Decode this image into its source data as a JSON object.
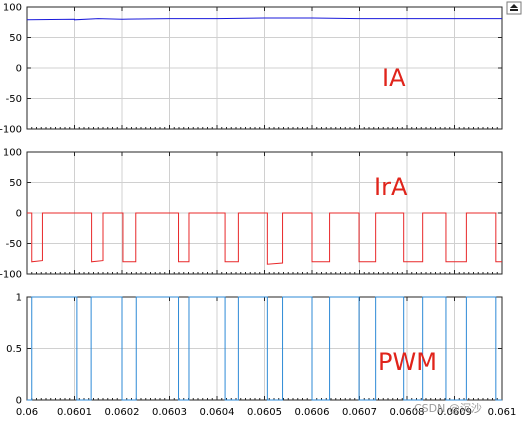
{
  "toolbar": {
    "restore_icon": "restore-axes-icon"
  },
  "watermark": "CSDN @沉沙",
  "chart_data": [
    {
      "type": "line",
      "label": "IA",
      "color": "#1a1adb",
      "ylim": [
        -100,
        100
      ],
      "yticks": [
        -100,
        -50,
        0,
        50,
        100
      ],
      "xlim": [
        0.06,
        0.061
      ],
      "grid": true,
      "series": [
        {
          "x": [
            0.06,
            0.0601,
            0.0601,
            0.06015,
            0.0602,
            0.0603,
            0.0604,
            0.0605,
            0.0606,
            0.0607,
            0.0608,
            0.0609,
            0.061
          ],
          "y": [
            79,
            80,
            79,
            81,
            80,
            81,
            81,
            82,
            82,
            81,
            81,
            81,
            81
          ]
        }
      ]
    },
    {
      "type": "line",
      "label": "IrA",
      "color": "#e8282a",
      "ylim": [
        -100,
        100
      ],
      "yticks": [
        -100,
        -50,
        0,
        50,
        100
      ],
      "xlim": [
        0.06,
        0.061
      ],
      "grid": true,
      "series": [
        {
          "x": [
            0.06,
            0.06001,
            0.06001,
            0.0600325,
            0.0600325,
            0.060136,
            0.060136,
            0.06016,
            0.06016,
            0.060202,
            0.060202,
            0.060229,
            0.060229,
            0.060319,
            0.060319,
            0.060341,
            0.060341,
            0.060417,
            0.060417,
            0.060445,
            0.060445,
            0.060506,
            0.060506,
            0.060538,
            0.060538,
            0.0606,
            0.0606,
            0.060637,
            0.060637,
            0.060699,
            0.060699,
            0.060734,
            0.060734,
            0.060793,
            0.060793,
            0.060833,
            0.060833,
            0.060882,
            0.060882,
            0.060925,
            0.060925,
            0.060987,
            0.060987,
            0.061
          ],
          "y": [
            0,
            0,
            -80,
            -78,
            0,
            0,
            -80,
            -78,
            0,
            0,
            -80,
            -80,
            0,
            0,
            -80,
            -80,
            0,
            0,
            -80,
            -80,
            0,
            0,
            -84,
            -82,
            0,
            0,
            -80,
            -80,
            0,
            0,
            -80,
            -80,
            0,
            0,
            -80,
            -80,
            0,
            0,
            -80,
            -80,
            0,
            0,
            -80,
            -80
          ]
        }
      ]
    },
    {
      "type": "line",
      "label": "PWM",
      "color": "#2e8ad6",
      "ylim": [
        0,
        1
      ],
      "yticks": [
        0,
        0.5,
        1
      ],
      "xlim": [
        0.06,
        0.061
      ],
      "xticks": [
        0.06,
        0.0601,
        0.0602,
        0.0603,
        0.0604,
        0.0605,
        0.0606,
        0.0607,
        0.0608,
        0.0609,
        0.061
      ],
      "grid": true,
      "series": [
        {
          "x": [
            0.06,
            0.06001,
            0.06001,
            0.060105,
            0.060105,
            0.060135,
            0.060135,
            0.0602,
            0.0602,
            0.06023,
            0.06023,
            0.060319,
            0.060319,
            0.060341,
            0.060341,
            0.060417,
            0.060417,
            0.060445,
            0.060445,
            0.060506,
            0.060506,
            0.060538,
            0.060538,
            0.0606,
            0.0606,
            0.060637,
            0.060637,
            0.060699,
            0.060699,
            0.060734,
            0.060734,
            0.060793,
            0.060793,
            0.060833,
            0.060833,
            0.060882,
            0.060882,
            0.060925,
            0.060925,
            0.060987,
            0.060987,
            0.061
          ],
          "y": [
            0,
            0,
            1,
            1,
            0,
            0,
            1,
            1,
            0,
            0,
            1,
            1,
            0,
            0,
            1,
            1,
            0,
            0,
            1,
            1,
            0,
            0,
            1,
            1,
            0,
            0,
            1,
            1,
            0,
            0,
            1,
            1,
            0,
            0,
            1,
            1,
            0,
            0,
            1,
            1,
            0,
            0
          ]
        }
      ]
    }
  ]
}
